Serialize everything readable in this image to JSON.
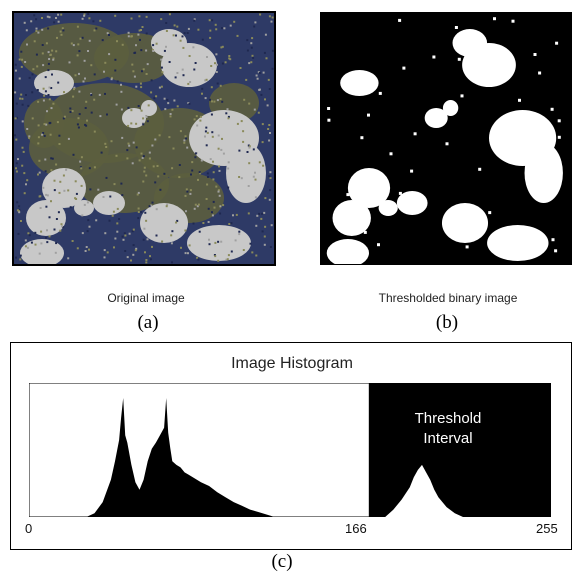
{
  "panel_a": {
    "caption": "Original image",
    "letter": "(a)",
    "colors": {
      "background": "#2e3a66",
      "regions": "#5c5e3e",
      "highlights": "#c8c8c8"
    }
  },
  "panel_b": {
    "caption": "Thresholded binary image",
    "letter": "(b)",
    "colors": {
      "background": "#000000",
      "foreground": "#ffffff"
    }
  },
  "panel_c": {
    "letter": "(c)",
    "chart_data": {
      "type": "area",
      "title": "Image Histogram",
      "xlim": [
        0,
        255
      ],
      "x_ticks": [
        "0",
        "166",
        "255"
      ],
      "threshold": {
        "start": 166,
        "end": 255,
        "label_line1": "Threshold",
        "label_line2": "Interval"
      },
      "grid": false,
      "ylim": [
        0,
        1
      ],
      "x": [
        0,
        28,
        32,
        36,
        40,
        42,
        44,
        45,
        46,
        47,
        48,
        50,
        52,
        54,
        56,
        58,
        60,
        62,
        64,
        66,
        67,
        68,
        69,
        70,
        72,
        74,
        76,
        78,
        80,
        84,
        88,
        92,
        96,
        100,
        104,
        108,
        112,
        116,
        120,
        166,
        174,
        178,
        182,
        186,
        188,
        190,
        192,
        194,
        196,
        198,
        200,
        204,
        208,
        212,
        255
      ],
      "values": [
        0,
        0,
        0.03,
        0.12,
        0.3,
        0.45,
        0.62,
        0.8,
        0.96,
        0.66,
        0.6,
        0.42,
        0.28,
        0.22,
        0.3,
        0.45,
        0.55,
        0.6,
        0.66,
        0.72,
        0.96,
        0.68,
        0.56,
        0.45,
        0.42,
        0.4,
        0.36,
        0.34,
        0.32,
        0.28,
        0.25,
        0.2,
        0.16,
        0.12,
        0.09,
        0.06,
        0.04,
        0.02,
        0,
        0,
        0,
        0.06,
        0.14,
        0.24,
        0.32,
        0.38,
        0.42,
        0.36,
        0.3,
        0.22,
        0.16,
        0.08,
        0.03,
        0,
        0
      ]
    }
  }
}
